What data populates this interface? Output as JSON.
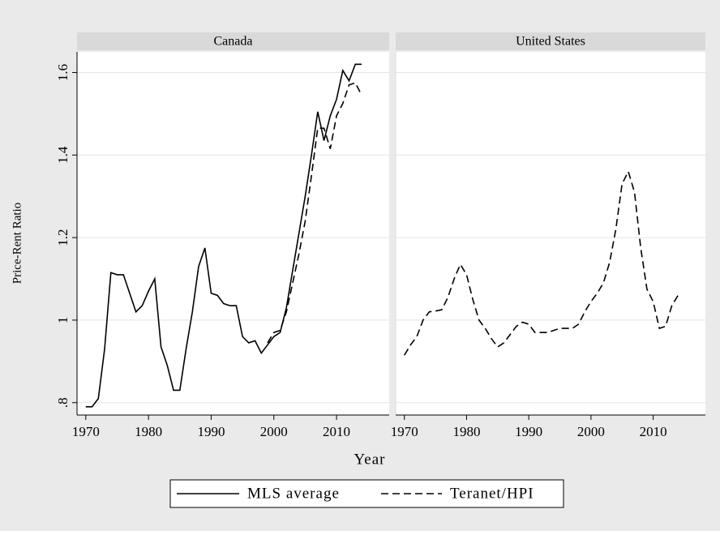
{
  "chart_data": {
    "type": "line",
    "xlabel": "Year",
    "ylabel": "Price-Rent Ratio",
    "x": [
      1970,
      1971,
      1972,
      1973,
      1974,
      1975,
      1976,
      1977,
      1978,
      1979,
      1980,
      1981,
      1982,
      1983,
      1984,
      1985,
      1986,
      1987,
      1988,
      1989,
      1990,
      1991,
      1992,
      1993,
      1994,
      1995,
      1996,
      1997,
      1998,
      1999,
      2000,
      2001,
      2002,
      2003,
      2004,
      2005,
      2006,
      2007,
      2008,
      2009,
      2010,
      2011,
      2012,
      2013,
      2014
    ],
    "xlim": [
      1968.6,
      2018.4
    ],
    "xticks": [
      1970,
      1980,
      1990,
      2000,
      2010
    ],
    "ylim": [
      0.77,
      1.65
    ],
    "yticks": [
      {
        "value": 0.8,
        "label": ".8"
      },
      1,
      1.2,
      1.4,
      1.6
    ],
    "grid": true,
    "legend": "bottom",
    "panels": [
      {
        "title": "Canada",
        "series": [
          {
            "name": "MLS average",
            "color": "#000000",
            "dash": false,
            "values": [
              0.79,
              0.79,
              0.81,
              0.93,
              1.115,
              1.11,
              1.11,
              1.065,
              1.02,
              1.035,
              1.07,
              1.1,
              0.935,
              0.89,
              0.83,
              0.83,
              0.93,
              1.02,
              1.13,
              1.175,
              1.065,
              1.06,
              1.04,
              1.035,
              1.035,
              0.96,
              0.945,
              0.95,
              0.92,
              0.94,
              0.96,
              0.97,
              1.03,
              1.12,
              1.21,
              1.3,
              1.4,
              1.505,
              1.435,
              1.495,
              1.535,
              1.605,
              1.58,
              1.62,
              1.62
            ]
          },
          {
            "name": "Teranet/HPI",
            "color": "#000000",
            "dash": true,
            "values": [
              null,
              null,
              null,
              null,
              null,
              null,
              null,
              null,
              null,
              null,
              null,
              null,
              null,
              null,
              null,
              null,
              null,
              null,
              null,
              null,
              null,
              null,
              null,
              null,
              null,
              null,
              null,
              null,
              null,
              0.945,
              0.97,
              0.975,
              1.02,
              1.09,
              1.16,
              1.24,
              1.35,
              1.465,
              1.465,
              1.415,
              1.495,
              1.525,
              1.57,
              1.575,
              1.545
            ]
          }
        ]
      },
      {
        "title": "United States",
        "series": [
          {
            "color": "#000000",
            "dash": true,
            "values": [
              0.915,
              0.94,
              0.96,
              1.0,
              1.02,
              1.022,
              1.025,
              1.055,
              1.1,
              1.135,
              1.11,
              1.05,
              1.0,
              0.98,
              0.955,
              0.935,
              0.945,
              0.965,
              0.985,
              0.995,
              0.99,
              0.97,
              0.97,
              0.97,
              0.975,
              0.98,
              0.98,
              0.98,
              0.99,
              1.02,
              1.045,
              1.065,
              1.09,
              1.14,
              1.22,
              1.33,
              1.36,
              1.31,
              1.175,
              1.075,
              1.045,
              0.98,
              0.985,
              1.035,
              1.06
            ]
          }
        ]
      }
    ]
  }
}
